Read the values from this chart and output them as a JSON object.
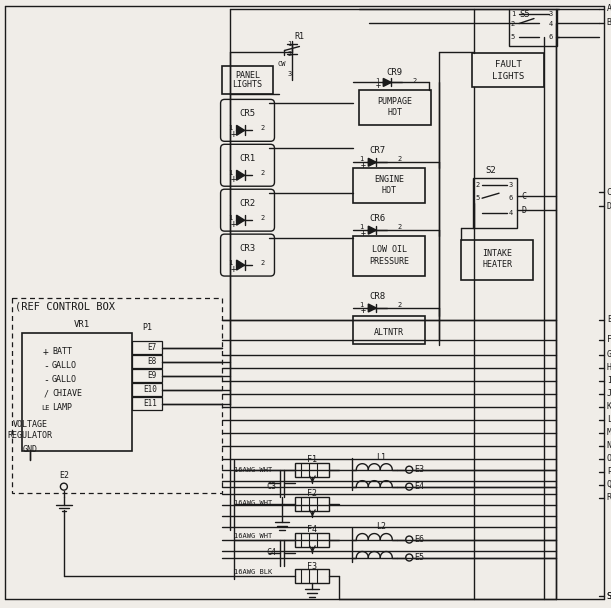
{
  "bg_color": "#f0ede8",
  "line_color": "#1a1a1a",
  "figsize": [
    6.11,
    6.08
  ],
  "dpi": 100,
  "right_labels": [
    [
      "A",
      8
    ],
    [
      "B",
      22
    ],
    [
      "C",
      192
    ],
    [
      "D",
      206
    ],
    [
      "E",
      320
    ],
    [
      "F",
      340
    ],
    [
      "G",
      355
    ],
    [
      "H",
      368
    ],
    [
      "I",
      381
    ],
    [
      "J",
      394
    ],
    [
      "K",
      407
    ],
    [
      "L",
      420
    ],
    [
      "M",
      433
    ],
    [
      "N",
      446
    ],
    [
      "O",
      459
    ],
    [
      "P",
      472
    ],
    [
      "Q",
      485
    ],
    [
      "R",
      498
    ],
    [
      "S",
      597
    ]
  ]
}
